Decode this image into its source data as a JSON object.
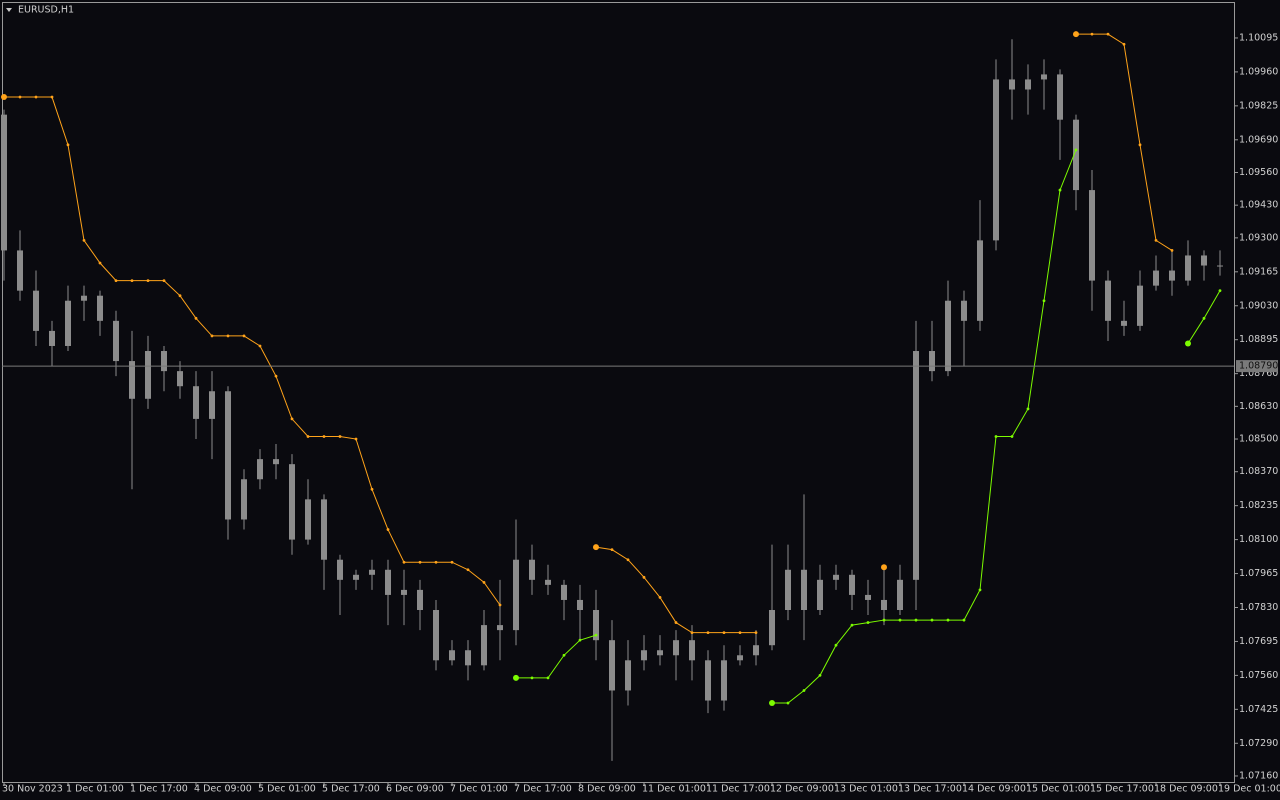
{
  "chart_data": {
    "type": "candlestick",
    "symbol": "EURUSD,H1",
    "categories": [
      "30 Nov 2023",
      null,
      null,
      null,
      "1 Dec 01:00",
      null,
      null,
      null,
      "1 Dec 17:00",
      null,
      null,
      null,
      "4 Dec 09:00",
      null,
      null,
      null,
      "5 Dec 01:00",
      null,
      null,
      null,
      "5 Dec 17:00",
      null,
      null,
      null,
      "6 Dec 09:00",
      null,
      null,
      null,
      "7 Dec 01:00",
      null,
      null,
      null,
      "7 Dec 17:00",
      null,
      null,
      null,
      "8 Dec 09:00",
      null,
      null,
      null,
      "11 Dec 01:00",
      null,
      null,
      null,
      "11 Dec 17:00",
      null,
      null,
      null,
      "12 Dec 09:00",
      null,
      null,
      null,
      "13 Dec 01:00",
      null,
      null,
      null,
      "13 Dec 17:00",
      null,
      null,
      null,
      "14 Dec 09:00",
      null,
      null,
      null,
      "15 Dec 01:00",
      null,
      null,
      null,
      "15 Dec 17:00",
      null,
      null,
      null,
      "18 Dec 09:00",
      null,
      null,
      null,
      "19 Dec 01:00"
    ],
    "open": [
      1.0979,
      1.0925,
      1.0909,
      1.0893,
      1.0887,
      1.0905,
      1.0907,
      1.0897,
      1.0881,
      1.0866,
      1.0885,
      1.0877,
      1.0871,
      1.0858,
      1.0869,
      1.0818,
      1.0834,
      1.0842,
      1.084,
      1.081,
      1.0826,
      1.0802,
      1.0794,
      1.0796,
      1.0798,
      1.0788,
      1.079,
      1.0782,
      1.0762,
      1.0766,
      1.076,
      1.0776,
      1.0774,
      1.0802,
      1.0794,
      1.0792,
      1.0786,
      1.0782,
      1.077,
      1.075,
      1.0762,
      1.0766,
      1.0764,
      1.077,
      1.0762,
      1.0746,
      1.0762,
      1.0764,
      1.0768,
      1.0782,
      1.0798,
      1.0782,
      1.0794,
      1.0796,
      1.0788,
      1.0786,
      1.0782,
      1.0794,
      1.0885,
      1.0877,
      1.0905,
      1.0897,
      1.0929,
      1.0993,
      1.0989,
      1.0993,
      1.0995,
      1.0977,
      1.0949,
      1.0913,
      1.0897,
      1.0895,
      1.0911,
      1.0917,
      1.0913,
      1.0923,
      1.0919
    ],
    "high": [
      1.0981,
      1.0933,
      1.0917,
      1.0897,
      1.0911,
      1.0911,
      1.0909,
      1.0901,
      1.0893,
      1.0891,
      1.0887,
      1.0881,
      1.0877,
      1.0877,
      1.0871,
      1.0838,
      1.0846,
      1.0848,
      1.0844,
      1.0834,
      1.0828,
      1.0804,
      1.0798,
      1.0802,
      1.0802,
      1.0798,
      1.0794,
      1.0786,
      1.077,
      1.077,
      1.0782,
      1.0794,
      1.0818,
      1.0808,
      1.08,
      1.0794,
      1.0792,
      1.079,
      1.0778,
      1.077,
      1.0772,
      1.0772,
      1.0774,
      1.0776,
      1.0766,
      1.0768,
      1.0768,
      1.0774,
      1.0808,
      1.0808,
      1.0828,
      1.08,
      1.08,
      1.0798,
      1.0794,
      1.08,
      1.08,
      1.0897,
      1.0897,
      1.0913,
      1.0909,
      1.0945,
      1.1001,
      1.1009,
      1.0999,
      1.1001,
      1.0997,
      1.0979,
      1.0957,
      1.0917,
      1.0905,
      1.0917,
      1.0923,
      1.0925,
      1.0929,
      1.0925,
      1.0925
    ],
    "low": [
      1.0913,
      1.0905,
      1.0887,
      1.0879,
      1.0885,
      1.0897,
      1.0891,
      1.0875,
      1.083,
      1.0862,
      1.0869,
      1.0866,
      1.085,
      1.0842,
      1.081,
      1.0814,
      1.083,
      1.0834,
      1.0804,
      1.0808,
      1.079,
      1.078,
      1.079,
      1.079,
      1.0776,
      1.0776,
      1.0774,
      1.0758,
      1.076,
      1.0754,
      1.0758,
      1.0762,
      1.0768,
      1.0788,
      1.0788,
      1.0778,
      1.077,
      1.0762,
      1.0722,
      1.0744,
      1.0758,
      1.076,
      1.0754,
      1.0754,
      1.0741,
      1.0742,
      1.076,
      1.076,
      1.0766,
      1.0778,
      1.077,
      1.078,
      1.079,
      1.0782,
      1.078,
      1.0776,
      1.078,
      1.0782,
      1.0873,
      1.0875,
      1.0879,
      1.0893,
      1.0925,
      1.0977,
      1.0979,
      1.0981,
      1.0961,
      1.0941,
      1.0901,
      1.0889,
      1.0891,
      1.0893,
      1.0909,
      1.0907,
      1.0911,
      1.0913,
      1.0915
    ],
    "close": [
      1.0925,
      1.0909,
      1.0893,
      1.0887,
      1.0905,
      1.0907,
      1.0897,
      1.0881,
      1.0866,
      1.0885,
      1.0877,
      1.0871,
      1.0858,
      1.0869,
      1.0818,
      1.0834,
      1.0842,
      1.084,
      1.081,
      1.0826,
      1.0802,
      1.0794,
      1.0796,
      1.0798,
      1.0788,
      1.079,
      1.0782,
      1.0762,
      1.0766,
      1.076,
      1.0776,
      1.0774,
      1.0802,
      1.0794,
      1.0792,
      1.0786,
      1.0782,
      1.077,
      1.075,
      1.0762,
      1.0766,
      1.0764,
      1.077,
      1.0762,
      1.0746,
      1.0762,
      1.0764,
      1.0768,
      1.0782,
      1.0798,
      1.0782,
      1.0794,
      1.0796,
      1.0788,
      1.0786,
      1.0782,
      1.0794,
      1.0885,
      1.0877,
      1.0905,
      1.0897,
      1.0929,
      1.0993,
      1.0989,
      1.0993,
      1.0995,
      1.0977,
      1.0949,
      1.0913,
      1.0897,
      1.0895,
      1.0911,
      1.0917,
      1.0913,
      1.0923,
      1.0919,
      1.0919
    ],
    "candle_color": "#8c8c8c",
    "series": [
      {
        "color": "#ffa31a",
        "values": [
          1.0986,
          1.0986,
          1.0986,
          1.0986,
          1.0967,
          1.0929,
          1.092,
          1.0913,
          1.0913,
          1.0913,
          1.0913,
          1.0907,
          1.0898,
          1.0891,
          1.0891,
          1.0891,
          1.0887,
          1.0875,
          1.0858,
          1.0851,
          1.0851,
          1.0851,
          1.085,
          1.083,
          1.0814,
          1.0801,
          1.0801,
          1.0801,
          1.0801,
          1.0798,
          1.0793,
          1.0784,
          null,
          null,
          null,
          null,
          null,
          1.0807,
          1.0806,
          1.0802,
          1.0795,
          1.0787,
          1.0777,
          1.0773,
          1.0773,
          1.0773,
          1.0773,
          1.0773,
          null,
          null,
          null,
          null,
          null,
          null,
          null,
          1.0799,
          null,
          null,
          null,
          null,
          null,
          null,
          null,
          null,
          null,
          null,
          null,
          1.1011,
          1.1011,
          1.1011,
          1.1007,
          1.0967,
          1.0929,
          1.0925,
          null,
          null,
          null
        ]
      },
      {
        "color": "#7cfc00",
        "values": [
          null,
          null,
          null,
          null,
          null,
          null,
          null,
          null,
          null,
          null,
          null,
          null,
          null,
          null,
          null,
          null,
          null,
          null,
          null,
          null,
          null,
          null,
          null,
          null,
          null,
          null,
          null,
          null,
          null,
          null,
          null,
          null,
          1.0755,
          1.0755,
          1.0755,
          1.0764,
          1.077,
          1.0772,
          null,
          null,
          null,
          null,
          null,
          null,
          null,
          null,
          null,
          null,
          1.0745,
          1.0745,
          1.075,
          1.0756,
          1.0768,
          1.0776,
          1.0777,
          1.0778,
          1.0778,
          1.0778,
          1.0778,
          1.0778,
          1.0778,
          1.079,
          1.0851,
          1.0851,
          1.0862,
          1.0905,
          1.0949,
          1.0965,
          null,
          null,
          null,
          null,
          null,
          null,
          1.0888,
          1.0898,
          1.0909
        ]
      }
    ],
    "current_price": {
      "value": 1.0879,
      "label": "1.08790"
    },
    "ylim": [
      1.07136,
      1.10238
    ],
    "yticks": [
      {
        "value": 1.10095,
        "label": "1.10095"
      },
      {
        "value": 1.0996,
        "label": "1.09960"
      },
      {
        "value": 1.09825,
        "label": "1.09825"
      },
      {
        "value": 1.0969,
        "label": "1.09690"
      },
      {
        "value": 1.0956,
        "label": "1.09560"
      },
      {
        "value": 1.0943,
        "label": "1.09430"
      },
      {
        "value": 1.093,
        "label": "1.09300"
      },
      {
        "value": 1.09165,
        "label": "1.09165"
      },
      {
        "value": 1.0903,
        "label": "1.09030"
      },
      {
        "value": 1.08895,
        "label": "1.08895"
      },
      {
        "value": 1.0876,
        "label": "1.08760"
      },
      {
        "value": 1.0863,
        "label": "1.08630"
      },
      {
        "value": 1.085,
        "label": "1.08500"
      },
      {
        "value": 1.0837,
        "label": "1.08370"
      },
      {
        "value": 1.08235,
        "label": "1.08235"
      },
      {
        "value": 1.081,
        "label": "1.08100"
      },
      {
        "value": 1.07965,
        "label": "1.07965"
      },
      {
        "value": 1.0783,
        "label": "1.07830"
      },
      {
        "value": 1.07695,
        "label": "1.07695"
      },
      {
        "value": 1.0756,
        "label": "1.07560"
      },
      {
        "value": 1.07425,
        "label": "1.07425"
      },
      {
        "value": 1.0729,
        "label": "1.07290"
      },
      {
        "value": 1.0716,
        "label": "1.07160"
      }
    ]
  }
}
